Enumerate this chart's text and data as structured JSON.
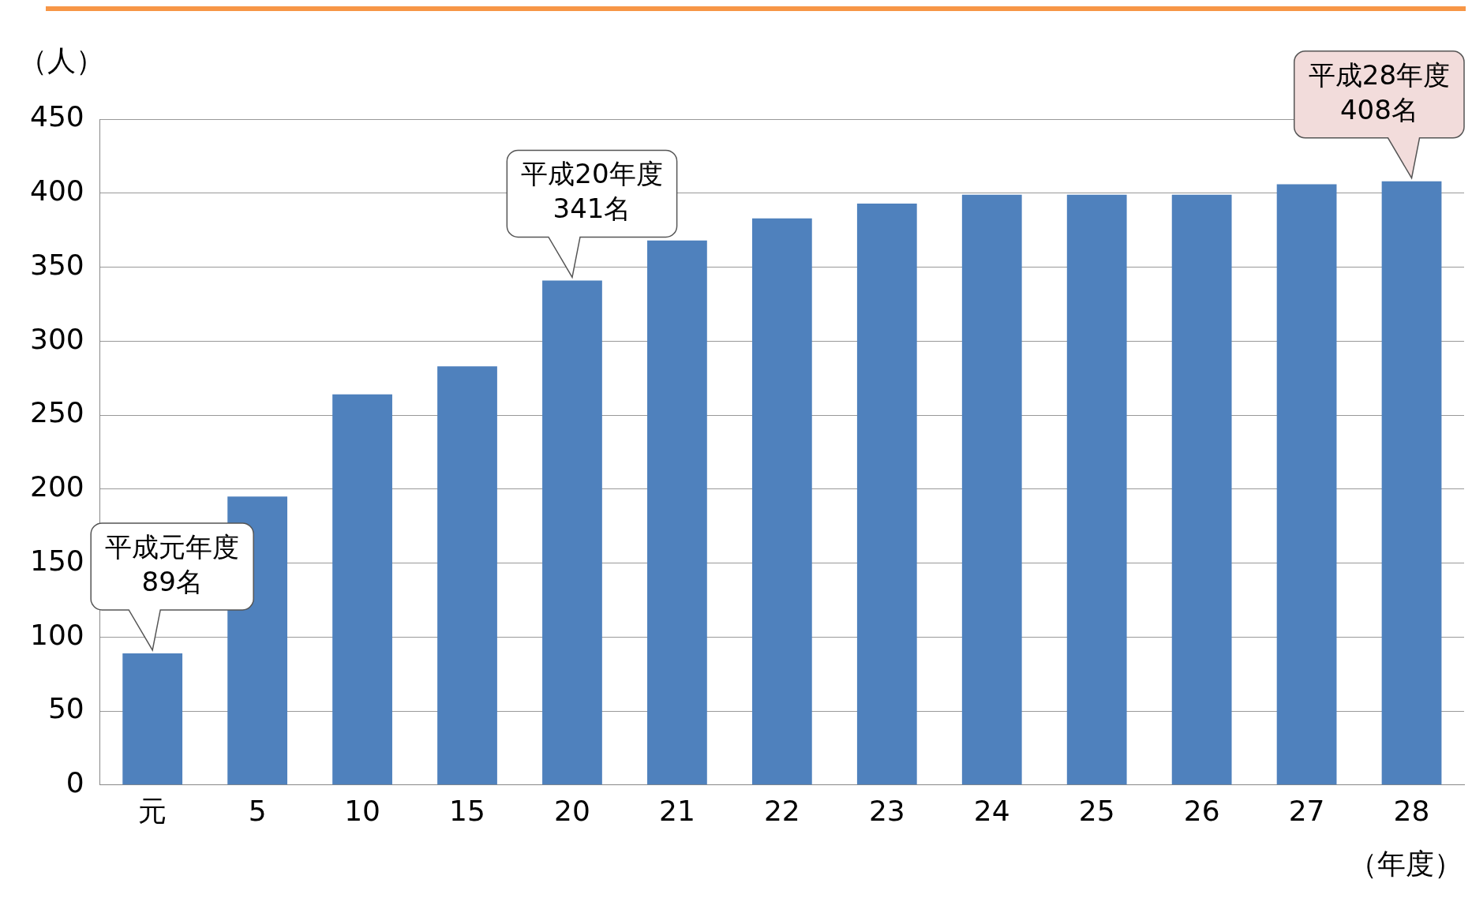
{
  "chart_data": {
    "type": "bar",
    "xlabel": "（年度）",
    "ylabel": "（人）",
    "categories": [
      "元",
      "5",
      "10",
      "15",
      "20",
      "21",
      "22",
      "23",
      "24",
      "25",
      "26",
      "27",
      "28"
    ],
    "values": [
      89,
      195,
      264,
      283,
      341,
      368,
      383,
      393,
      399,
      399,
      399,
      406,
      408
    ],
    "color": "#4f81bd",
    "ylim": [
      0,
      450
    ],
    "yticks": [
      0,
      50,
      100,
      150,
      200,
      250,
      300,
      350,
      400,
      450
    ],
    "grid": "y",
    "legend": false,
    "annotations": [
      {
        "text": "平成元年度\n89名",
        "x": "元",
        "y": 89
      },
      {
        "text": "平成20年度\n341名",
        "x": "20",
        "y": 341
      },
      {
        "text": "平成28年度\n408名",
        "x": "28",
        "y": 408
      }
    ]
  }
}
